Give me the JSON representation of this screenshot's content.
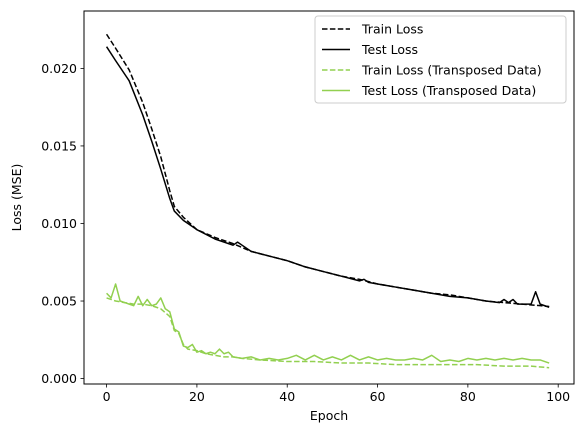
{
  "chart_data": {
    "type": "line",
    "title": "",
    "xlabel": "Epoch",
    "ylabel": "Loss (MSE)",
    "xlim": [
      -5,
      103.5
    ],
    "ylim": [
      -0.00035,
      0.0237
    ],
    "xticks": [
      0,
      20,
      40,
      60,
      80,
      100
    ],
    "yticks": [
      0.0,
      0.005,
      0.01,
      0.015,
      0.02
    ],
    "ytick_labels": [
      "0.000",
      "0.005",
      "0.010",
      "0.015",
      "0.020"
    ],
    "grid": false,
    "legend_position": "top-right",
    "series": [
      {
        "name": "Train Loss",
        "color": "#000000",
        "style": "dashed",
        "x": [
          0,
          2,
          5,
          8,
          10,
          12,
          14,
          15,
          17,
          20,
          24,
          28,
          32,
          36,
          40,
          44,
          48,
          52,
          56,
          60,
          64,
          68,
          72,
          76,
          80,
          84,
          88,
          92,
          96,
          98
        ],
        "y": [
          0.0222,
          0.0213,
          0.0199,
          0.0178,
          0.0161,
          0.0143,
          0.0121,
          0.0111,
          0.0104,
          0.0096,
          0.0091,
          0.0087,
          0.0082,
          0.0079,
          0.0076,
          0.0072,
          0.0069,
          0.0066,
          0.0064,
          0.0061,
          0.0059,
          0.0057,
          0.0055,
          0.0054,
          0.0052,
          0.005,
          0.0049,
          0.0048,
          0.0047,
          0.00465
        ]
      },
      {
        "name": "Test Loss",
        "color": "#000000",
        "style": "solid",
        "x": [
          0,
          2,
          5,
          8,
          10,
          12,
          14,
          15,
          17,
          20,
          24,
          28,
          29,
          30,
          32,
          36,
          40,
          44,
          48,
          52,
          56,
          57,
          58,
          60,
          64,
          68,
          72,
          76,
          80,
          84,
          87,
          88,
          89,
          90,
          91,
          93,
          94,
          95,
          96,
          98
        ],
        "y": [
          0.0214,
          0.0205,
          0.0192,
          0.017,
          0.0153,
          0.0135,
          0.0116,
          0.0108,
          0.0102,
          0.0096,
          0.009,
          0.0086,
          0.0088,
          0.0086,
          0.0082,
          0.0079,
          0.0076,
          0.0072,
          0.0069,
          0.0066,
          0.0063,
          0.0064,
          0.0062,
          0.0061,
          0.0059,
          0.0057,
          0.0055,
          0.0053,
          0.0052,
          0.005,
          0.0049,
          0.0051,
          0.0049,
          0.0051,
          0.0048,
          0.0048,
          0.0048,
          0.0056,
          0.0048,
          0.0046
        ]
      },
      {
        "name": "Train Loss (Transposed Data)",
        "color": "#92d050",
        "style": "dashed",
        "x": [
          0,
          2,
          4,
          6,
          8,
          10,
          12,
          14,
          15,
          16,
          17,
          18,
          20,
          22,
          24,
          26,
          28,
          30,
          34,
          40,
          46,
          52,
          58,
          64,
          70,
          76,
          82,
          88,
          94,
          98
        ],
        "y": [
          0.0052,
          0.005,
          0.0049,
          0.0048,
          0.0048,
          0.0047,
          0.0045,
          0.004,
          0.0031,
          0.0029,
          0.0022,
          0.0019,
          0.0018,
          0.0016,
          0.0015,
          0.0014,
          0.0014,
          0.0013,
          0.0012,
          0.0011,
          0.0011,
          0.001,
          0.001,
          0.0009,
          0.0009,
          0.0009,
          0.0009,
          0.0008,
          0.0008,
          0.0007
        ]
      },
      {
        "name": "Test Loss (Transposed Data)",
        "color": "#92d050",
        "style": "solid",
        "x": [
          0,
          1,
          2,
          3,
          4,
          5,
          6,
          7,
          8,
          9,
          10,
          11,
          12,
          13,
          14,
          15,
          16,
          17,
          18,
          19,
          20,
          21,
          22,
          23,
          24,
          25,
          26,
          27,
          28,
          30,
          32,
          34,
          36,
          38,
          40,
          42,
          44,
          46,
          48,
          50,
          52,
          54,
          56,
          58,
          60,
          62,
          64,
          66,
          68,
          70,
          72,
          74,
          76,
          78,
          80,
          82,
          84,
          86,
          88,
          90,
          92,
          94,
          96,
          98
        ],
        "y": [
          0.0055,
          0.0052,
          0.0061,
          0.005,
          0.0049,
          0.0048,
          0.0047,
          0.0053,
          0.0047,
          0.0051,
          0.0047,
          0.0048,
          0.0052,
          0.0045,
          0.0043,
          0.0032,
          0.003,
          0.0021,
          0.002,
          0.0022,
          0.0017,
          0.0018,
          0.0016,
          0.0017,
          0.0016,
          0.0019,
          0.0016,
          0.0017,
          0.0014,
          0.0013,
          0.0014,
          0.0012,
          0.0013,
          0.0012,
          0.0013,
          0.0015,
          0.0012,
          0.0015,
          0.0012,
          0.0014,
          0.0012,
          0.0015,
          0.0012,
          0.0014,
          0.0012,
          0.0013,
          0.0012,
          0.0012,
          0.0013,
          0.0012,
          0.0015,
          0.0011,
          0.0012,
          0.0011,
          0.0013,
          0.0012,
          0.0013,
          0.0012,
          0.0013,
          0.0012,
          0.0013,
          0.0012,
          0.0012,
          0.001
        ]
      }
    ]
  }
}
